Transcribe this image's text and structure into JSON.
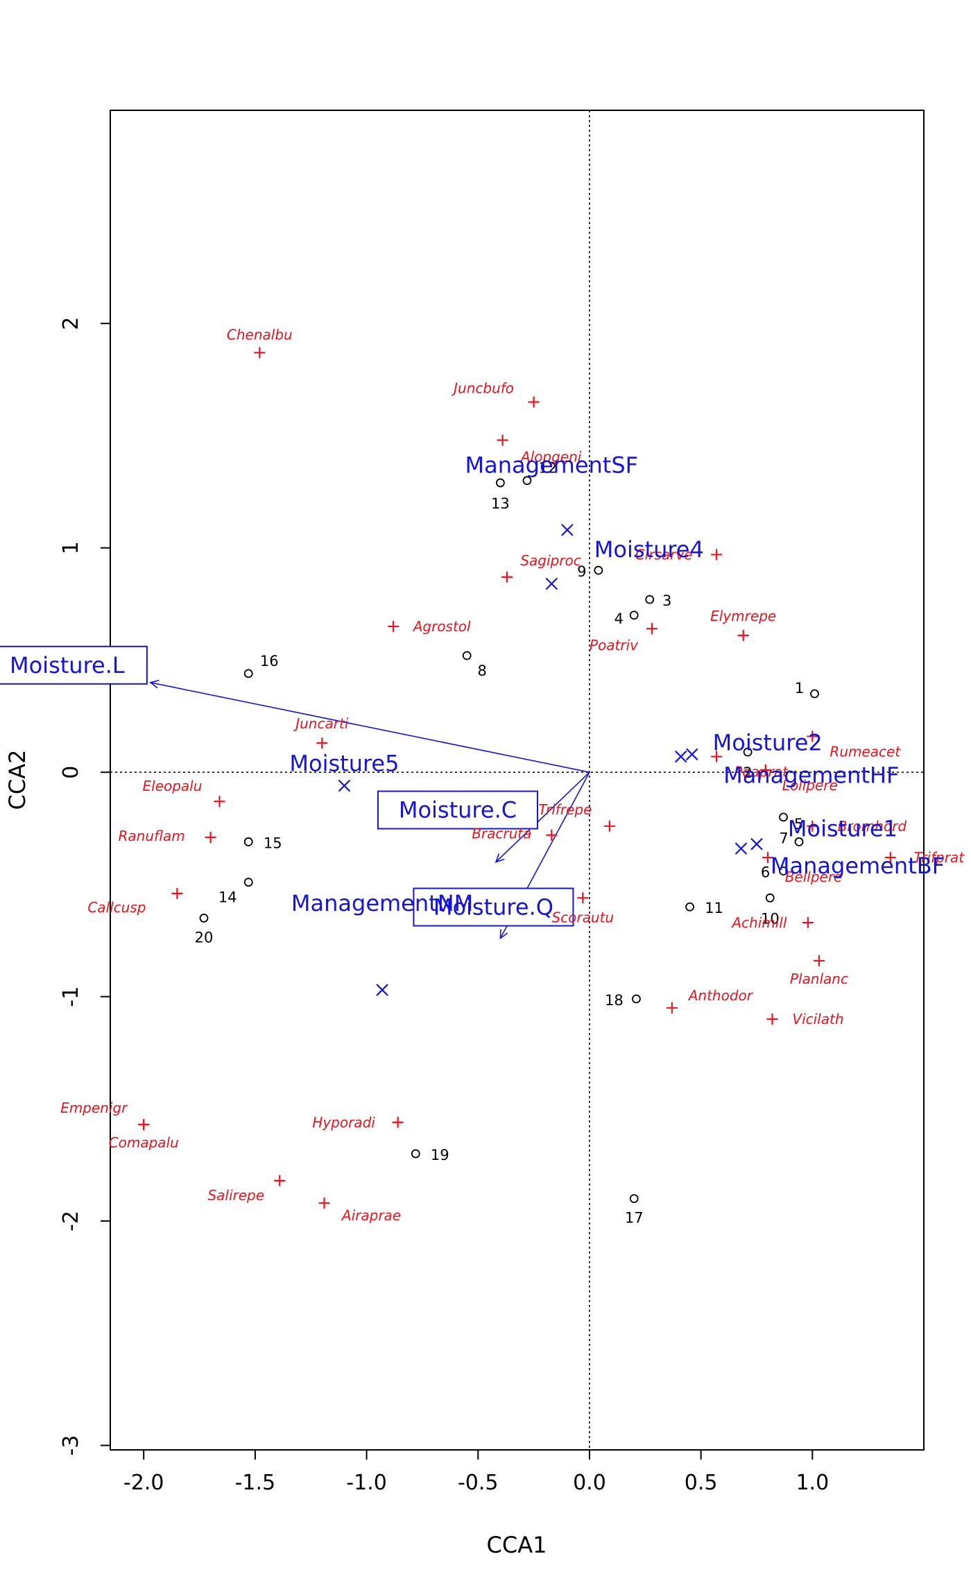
{
  "chart_data": {
    "type": "scatter",
    "xlabel": "CCA1",
    "ylabel": "CCA2",
    "xlim": [
      -2.15,
      1.5
    ],
    "ylim": [
      -3.02,
      2.95
    ],
    "xticks": [
      "-2.0",
      "-1.5",
      "-1.0",
      "-0.5",
      "0.0",
      "0.5",
      "1.0"
    ],
    "xtick_values": [
      -2.0,
      -1.5,
      -1.0,
      -0.5,
      0.0,
      0.5,
      1.0
    ],
    "yticks": [
      "-3",
      "-2",
      "-1",
      "0",
      "1",
      "2"
    ],
    "ytick_values": [
      -3,
      -2,
      -1,
      0,
      1,
      2
    ],
    "colors": {
      "species": "#e8141e",
      "factors": "#1515d9",
      "sites": "#000000"
    },
    "sites": [
      {
        "label": "1",
        "x": 1.01,
        "y": 0.35
      },
      {
        "label": "2",
        "x": 0.71,
        "y": 0.09
      },
      {
        "label": "3",
        "x": 0.27,
        "y": 0.77
      },
      {
        "label": "4",
        "x": 0.2,
        "y": 0.7
      },
      {
        "label": "5",
        "x": 0.87,
        "y": -0.2
      },
      {
        "label": "6",
        "x": 0.87,
        "y": -0.44
      },
      {
        "label": "7",
        "x": 0.94,
        "y": -0.31
      },
      {
        "label": "8",
        "x": -0.55,
        "y": 0.52
      },
      {
        "label": "9",
        "x": 0.04,
        "y": 0.9
      },
      {
        "label": "10",
        "x": 0.81,
        "y": -0.56
      },
      {
        "label": "11",
        "x": 0.45,
        "y": -0.6
      },
      {
        "label": "12",
        "x": -0.28,
        "y": 1.3
      },
      {
        "label": "13",
        "x": -0.4,
        "y": 1.29
      },
      {
        "label": "14",
        "x": -1.53,
        "y": -0.49
      },
      {
        "label": "15",
        "x": -1.53,
        "y": -0.31
      },
      {
        "label": "16",
        "x": -1.53,
        "y": 0.44
      },
      {
        "label": "17",
        "x": 0.2,
        "y": -1.9
      },
      {
        "label": "18",
        "x": 0.21,
        "y": -1.01
      },
      {
        "label": "19",
        "x": -0.78,
        "y": -1.7
      },
      {
        "label": "20",
        "x": -1.73,
        "y": -0.65
      }
    ],
    "species": [
      {
        "label": "Achimill",
        "x": 0.98,
        "y": -0.67
      },
      {
        "label": "Agrostol",
        "x": -0.88,
        "y": 0.65
      },
      {
        "label": "Airaprae",
        "x": -1.19,
        "y": -1.92
      },
      {
        "label": "Alopgeni",
        "x": -0.39,
        "y": 1.48
      },
      {
        "label": "Anthodor",
        "x": 0.37,
        "y": -1.05
      },
      {
        "label": "Bellpere",
        "x": 0.8,
        "y": -0.38
      },
      {
        "label": "Bromhord",
        "x": 1.0,
        "y": -0.24
      },
      {
        "label": "Chenalbu",
        "x": -1.48,
        "y": 1.87
      },
      {
        "label": "Cirsarve",
        "x": 0.57,
        "y": 0.97
      },
      {
        "label": "Comapalu",
        "x": -2.0,
        "y": -1.57
      },
      {
        "label": "Eleopalu",
        "x": -1.66,
        "y": -0.13
      },
      {
        "label": "Elymrepe",
        "x": 0.69,
        "y": 0.61
      },
      {
        "label": "Empenigr",
        "x": -2.0,
        "y": -1.57
      },
      {
        "label": "Hyporadi",
        "x": -0.86,
        "y": -1.56
      },
      {
        "label": "Juncarti",
        "x": -1.2,
        "y": 0.13
      },
      {
        "label": "Juncbufo",
        "x": -0.25,
        "y": 1.65
      },
      {
        "label": "Lolipere",
        "x": 0.79,
        "y": 0.01
      },
      {
        "label": "Planlanc",
        "x": 1.03,
        "y": -0.84
      },
      {
        "label": "Poaprat",
        "x": 0.57,
        "y": 0.07
      },
      {
        "label": "Poatriv",
        "x": 0.28,
        "y": 0.64
      },
      {
        "label": "Ranuflam",
        "x": -1.7,
        "y": -0.29
      },
      {
        "label": "Rumeacet",
        "x": 1.0,
        "y": 0.16
      },
      {
        "label": "Sagiproc",
        "x": -0.37,
        "y": 0.87
      },
      {
        "label": "Salirepe",
        "x": -1.39,
        "y": -1.82
      },
      {
        "label": "Scorautu",
        "x": -0.03,
        "y": -0.56
      },
      {
        "label": "Trifprat",
        "x": 1.35,
        "y": -0.38
      },
      {
        "label": "Trifrepe",
        "x": 0.09,
        "y": -0.24
      },
      {
        "label": "Vicilath",
        "x": 0.82,
        "y": -1.1
      },
      {
        "label": "Bracruta",
        "x": -0.17,
        "y": -0.28
      },
      {
        "label": "Callcusp",
        "x": -1.85,
        "y": -0.54
      }
    ],
    "factor_centroids": [
      {
        "label": "Moisture1",
        "x": 0.75,
        "y": -0.32
      },
      {
        "label": "Moisture2",
        "x": 0.41,
        "y": 0.07
      },
      {
        "label": "Moisture4",
        "x": -0.1,
        "y": 1.08
      },
      {
        "label": "Moisture5",
        "x": -1.1,
        "y": -0.06
      },
      {
        "label": "ManagementBF",
        "x": 0.68,
        "y": -0.34
      },
      {
        "label": "ManagementHF",
        "x": 0.46,
        "y": 0.08
      },
      {
        "label": "ManagementNM",
        "x": -0.93,
        "y": -0.97
      },
      {
        "label": "ManagementSF",
        "x": -0.17,
        "y": 0.84
      }
    ],
    "ordered_factor_arrows": [
      {
        "label": "Moisture.L",
        "x": -1.97,
        "y": 0.4
      },
      {
        "label": "Moisture.C",
        "x": -0.42,
        "y": -0.4
      },
      {
        "label": "Moisture.Q",
        "x": -0.4,
        "y": -0.74
      }
    ]
  }
}
